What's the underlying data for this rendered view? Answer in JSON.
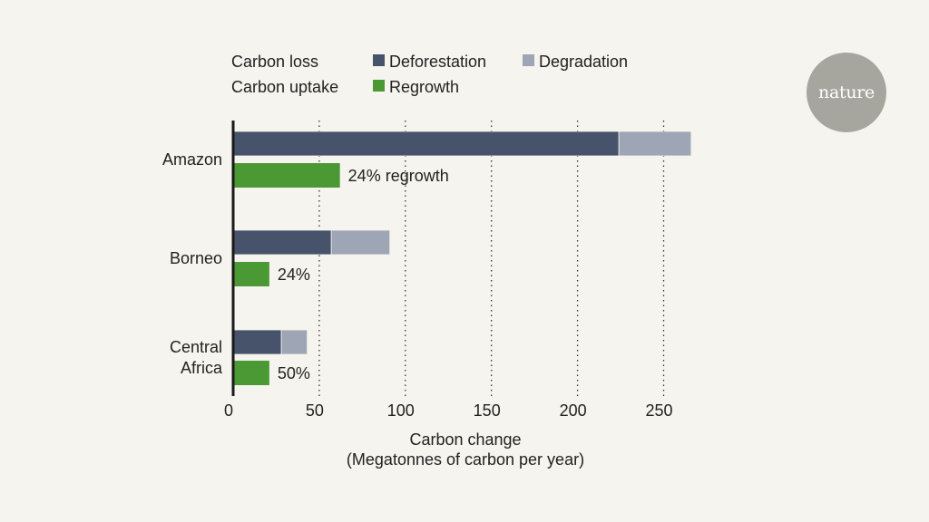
{
  "brand": {
    "logo_text": "nature"
  },
  "colors": {
    "background": "#f5f4ee",
    "deforestation": "#46536a",
    "degradation": "#9ea6b5",
    "regrowth": "#4a9934",
    "axis": "#1a1a1a",
    "grid": "#333333",
    "logo_circle": "#a7a69e"
  },
  "chart_data": {
    "type": "bar",
    "orientation": "horizontal",
    "stacked": true,
    "categories": [
      "Amazon",
      "Borneo",
      "Central Africa"
    ],
    "category_label_lines": [
      [
        "Amazon"
      ],
      [
        "Borneo"
      ],
      [
        "Central",
        "Africa"
      ]
    ],
    "legend": {
      "groups": [
        {
          "label": "Carbon loss",
          "entries": [
            "Deforestation",
            "Degradation"
          ]
        },
        {
          "label": "Carbon uptake",
          "entries": [
            "Regrowth"
          ]
        }
      ],
      "placement": "top"
    },
    "series": [
      {
        "name": "Deforestation",
        "group": "Carbon loss",
        "color": "#46536a",
        "values": [
          224,
          57,
          28
        ]
      },
      {
        "name": "Degradation",
        "group": "Carbon loss",
        "color": "#9ea6b5",
        "values": [
          42,
          34,
          15
        ]
      },
      {
        "name": "Regrowth",
        "group": "Carbon uptake",
        "color": "#4a9934",
        "values": [
          62,
          21,
          21
        ]
      }
    ],
    "annotations": [
      "24% regrowth",
      "24%",
      "50%"
    ],
    "xlabel": [
      "Carbon change",
      "(Megatonnes of carbon per year)"
    ],
    "ylabel": "",
    "xlim": [
      0,
      265
    ],
    "xticks": [
      0,
      50,
      100,
      150,
      200,
      250
    ],
    "grid": "vertical dotted"
  }
}
